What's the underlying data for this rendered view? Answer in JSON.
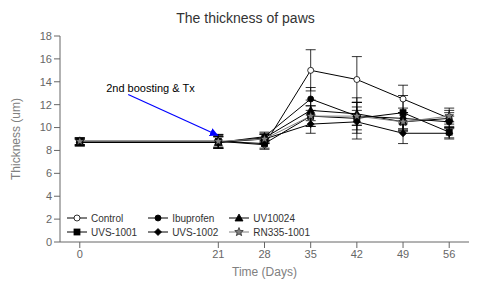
{
  "chart_data": {
    "type": "line",
    "title": "The thickness of paws",
    "x_label": "Time (Days)",
    "y_label": "Thickness (um)",
    "x": [
      0,
      21,
      28,
      35,
      42,
      49,
      56
    ],
    "xlim": [
      -3,
      59
    ],
    "xticks": [
      0,
      21,
      28,
      35,
      42,
      49,
      56
    ],
    "ylim": [
      0,
      18
    ],
    "yticks": [
      0,
      2,
      4,
      6,
      8,
      10,
      12,
      14,
      16,
      18
    ],
    "grid": false,
    "legend": "lower left",
    "annotations": [
      {
        "text": "2nd boosting & Tx",
        "x": 21,
        "y": 9.3,
        "text_x": 4,
        "text_y": 13.5
      }
    ],
    "series": [
      {
        "name": "Control",
        "color": "black",
        "marker": "open_circle",
        "line_style": "solid",
        "values": [
          8.8,
          8.8,
          8.5,
          15.0,
          14.2,
          12.5,
          10.8
        ],
        "yerr": [
          0.3,
          0.6,
          0.4,
          1.8,
          2.0,
          1.2,
          0.9
        ]
      },
      {
        "name": "Ibuprofen",
        "color": "black",
        "marker": "circle",
        "line_style": "solid",
        "values": [
          8.7,
          8.7,
          9.2,
          12.5,
          11.0,
          10.8,
          10.5
        ],
        "yerr": [
          0.3,
          0.5,
          0.4,
          1.0,
          1.2,
          0.9,
          0.5
        ]
      },
      {
        "name": "UV10024",
        "color": "black",
        "marker": "triangle",
        "line_style": "solid",
        "values": [
          8.7,
          8.7,
          9.1,
          11.5,
          11.2,
          10.5,
          10.8
        ],
        "yerr": [
          0.3,
          0.5,
          0.4,
          0.9,
          1.0,
          0.8,
          0.5
        ]
      },
      {
        "name": "UVS-1001",
        "color": "black",
        "marker": "square",
        "line_style": "solid",
        "values": [
          8.8,
          8.8,
          8.6,
          11.0,
          10.8,
          11.3,
          9.6
        ],
        "yerr": [
          0.3,
          0.6,
          0.4,
          0.9,
          1.8,
          1.5,
          0.5
        ]
      },
      {
        "name": "UVS-1002",
        "color": "black",
        "marker": "diamond",
        "line_style": "solid",
        "values": [
          8.7,
          8.7,
          9.0,
          10.3,
          10.5,
          9.5,
          9.5
        ],
        "yerr": [
          0.3,
          0.5,
          0.4,
          0.8,
          1.0,
          0.9,
          0.5
        ]
      },
      {
        "name": "RN335-1001",
        "color": "gray",
        "marker": "star",
        "line_style": "solid",
        "values": [
          8.8,
          8.8,
          9.0,
          11.0,
          11.0,
          10.5,
          11.0
        ],
        "yerr": [
          0.3,
          0.5,
          0.4,
          0.9,
          0.8,
          0.8,
          0.5
        ]
      }
    ]
  }
}
